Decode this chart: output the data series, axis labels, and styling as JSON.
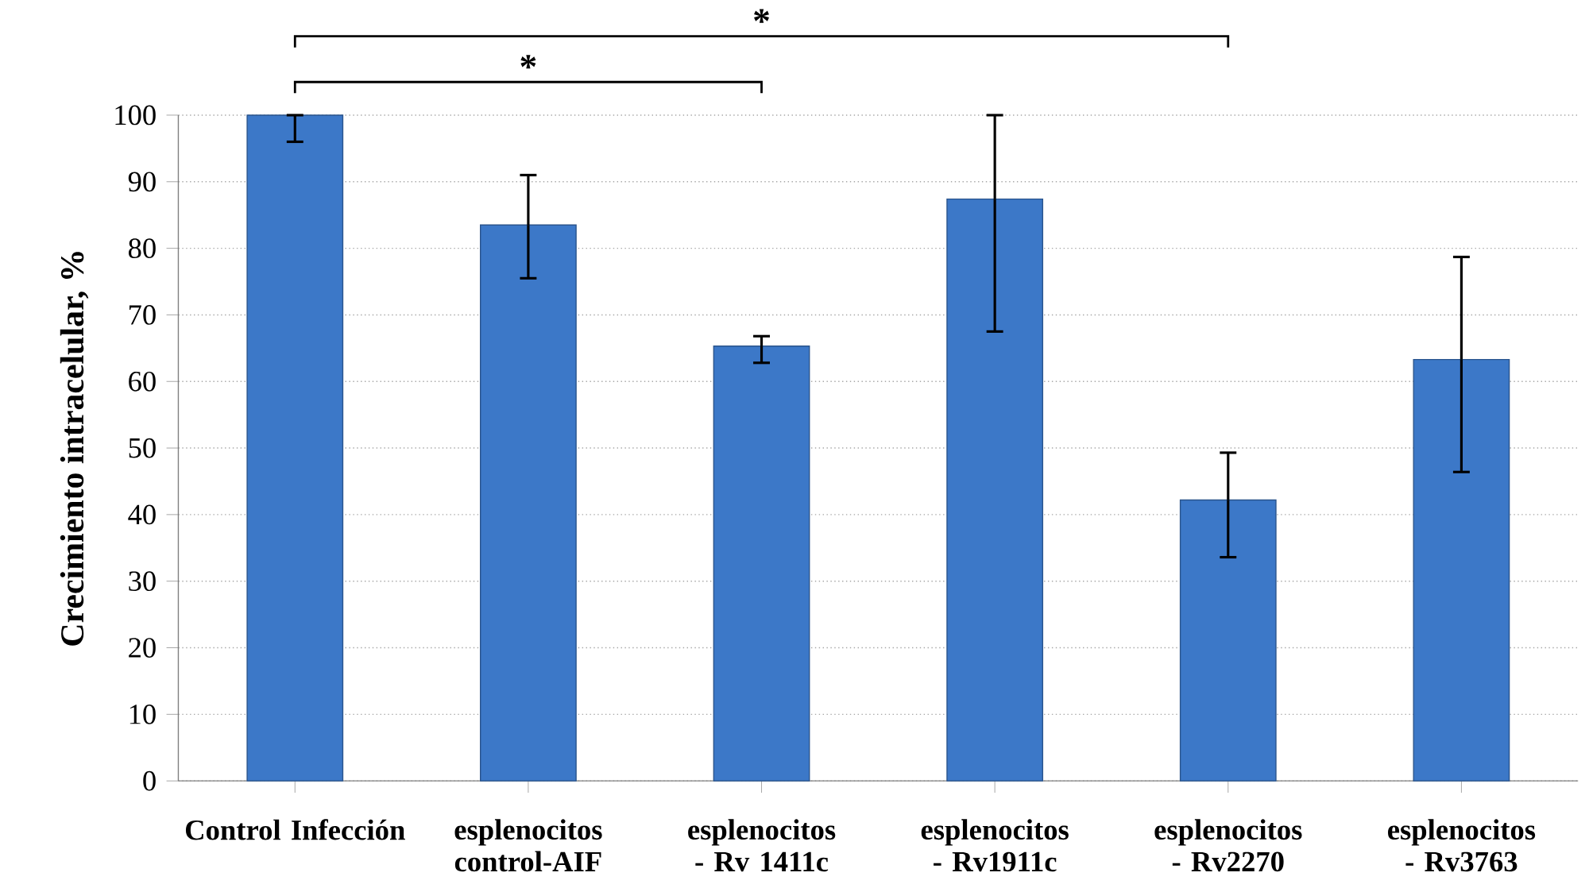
{
  "chart_data": {
    "type": "bar",
    "ylabel": "Crecimiento   intracelular, %",
    "categories": [
      "Control Infección",
      "esplenocitos control-AIF",
      "esplenocitos - Rv 1411c",
      "esplenocitos - Rv1911c",
      "esplenocitos - Rv2270",
      "esplenocitos - Rv3763"
    ],
    "values": [
      100,
      83.5,
      65.3,
      87.4,
      42.2,
      63.3
    ],
    "errors": [
      [
        96,
        100
      ],
      [
        75.5,
        91
      ],
      [
        62.8,
        66.8
      ],
      [
        67.5,
        100
      ],
      [
        33.6,
        49.3
      ],
      [
        46.4,
        78.7
      ]
    ],
    "color": "#3c78c8",
    "ylim": [
      0,
      100
    ],
    "yticks": [
      0,
      10,
      20,
      30,
      40,
      50,
      60,
      70,
      80,
      90,
      100
    ],
    "grid": "y",
    "annotations": [
      "*",
      "*"
    ]
  }
}
